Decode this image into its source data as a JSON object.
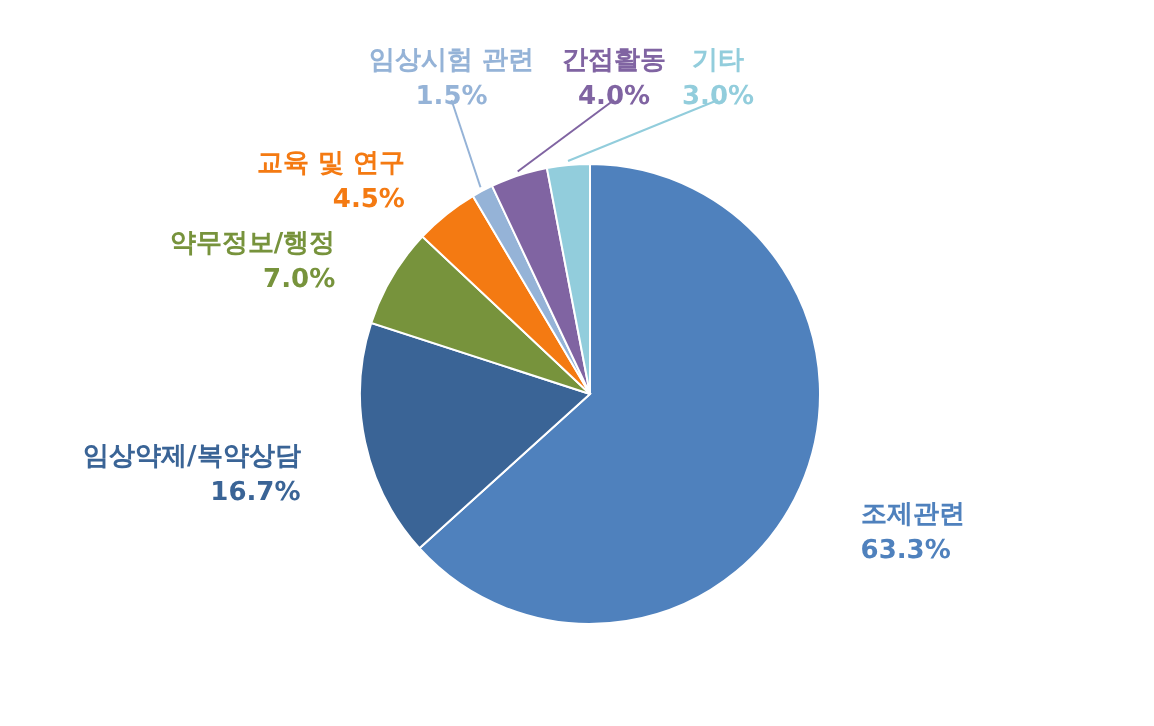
{
  "chart_data": {
    "type": "pie",
    "categories": [
      "조제관련",
      "임상약제/복약상담",
      "약무정보/행정",
      "교육 및 연구",
      "임상시험 관련",
      "간접활동",
      "기타"
    ],
    "values": [
      63.3,
      16.7,
      7.0,
      4.5,
      1.5,
      4.0,
      3.0
    ],
    "value_labels": [
      "63.3%",
      "16.7%",
      "7.0%",
      "4.5%",
      "1.5%",
      "4.0%",
      "3.0%"
    ],
    "colors": [
      "#4f81bd",
      "#3a6496",
      "#77933c",
      "#f47a12",
      "#95b3d7",
      "#8064a2",
      "#92cddc"
    ]
  }
}
